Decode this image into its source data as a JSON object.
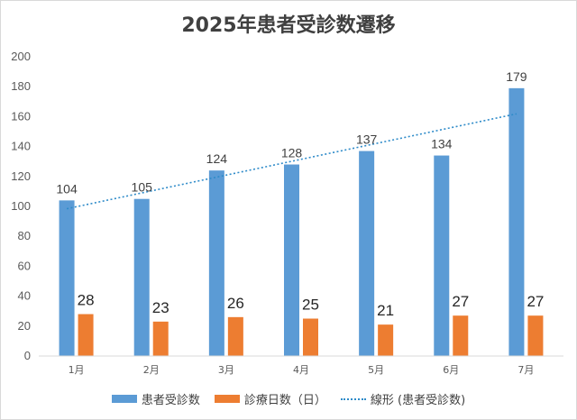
{
  "chart_data": {
    "type": "bar",
    "title": "2025年患者受診数遷移",
    "categories": [
      "1月",
      "2月",
      "3月",
      "4月",
      "5月",
      "6月",
      "7月"
    ],
    "series": [
      {
        "name": "患者受診数",
        "values": [
          104,
          105,
          124,
          128,
          137,
          134,
          179
        ],
        "color": "#5b9bd5"
      },
      {
        "name": "診療日数（日）",
        "values": [
          28,
          23,
          26,
          25,
          21,
          27,
          27
        ],
        "color": "#ed7d31"
      }
    ],
    "trendline": {
      "name": "線形 (患者受診数)",
      "of_series": "患者受診数",
      "style": "dotted",
      "color": "#2e8bc9"
    },
    "ylim": [
      0,
      200
    ],
    "yticks": [
      0,
      20,
      40,
      60,
      80,
      100,
      120,
      140,
      160,
      180,
      200
    ],
    "xlabel": "",
    "ylabel": "",
    "grid": "none",
    "legend": "bottom"
  }
}
